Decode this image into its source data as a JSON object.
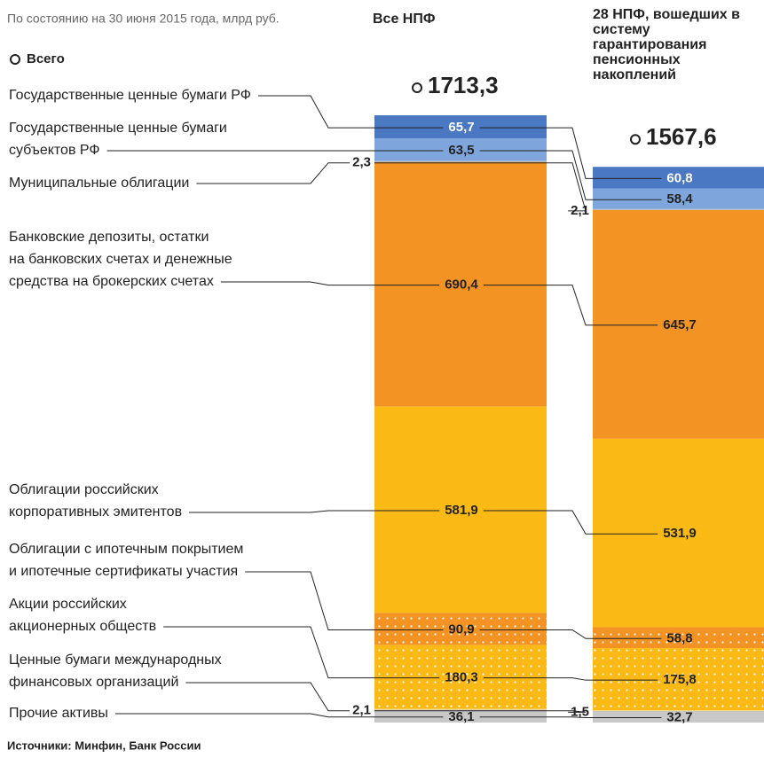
{
  "chart_data": {
    "type": "bar",
    "stacked": true,
    "subtitle": "По состоянию на 30 июня 2015 года, млрд руб.",
    "legend_label": "Всего",
    "source": "Источники: Минфин, Банк России",
    "categories": [
      [
        "Государственные ценные бумаги РФ"
      ],
      [
        "Государственные ценные бумаги",
        "субъектов РФ"
      ],
      [
        "Муниципальные облигации"
      ],
      [
        "Банковские депозиты, остатки",
        "на банковских счетах и денежные",
        "средства на брокерских счетах"
      ],
      [
        "Облигации российских",
        "корпоративных эмитентов"
      ],
      [
        "Облигации с ипотечным покрытием",
        "и ипотечные сертификаты участия"
      ],
      [
        "Акции российских",
        "акционерных обществ"
      ],
      [
        "Ценные бумаги международных",
        "финансовых организаций"
      ],
      [
        "Прочие активы"
      ]
    ],
    "colors": [
      "#4a78c2",
      "#7ea6dc",
      "#a9c3e8",
      "#f39323",
      "#fbb915",
      "#f39323",
      "#fbb915",
      "#fdd77a",
      "#c8c8c8"
    ],
    "dotted": [
      false,
      false,
      false,
      false,
      false,
      true,
      true,
      false,
      false
    ],
    "series": [
      {
        "name": "Все НПФ",
        "total": 1713.3,
        "total_label": "1713,3",
        "values": [
          65.7,
          63.5,
          2.3,
          690.4,
          581.9,
          90.9,
          180.3,
          2.1,
          36.1
        ],
        "value_labels": [
          "65,7",
          "63,5",
          "2,3",
          "690,4",
          "581,9",
          "90,9",
          "180,3",
          "2,1",
          "36,1"
        ]
      },
      {
        "name": "28 НПФ, вошедших в систему гарантирования пенсионных накоплений",
        "total": 1567.6,
        "total_label": "1567,6",
        "values": [
          60.8,
          58.4,
          2.1,
          645.7,
          531.9,
          58.8,
          175.8,
          1.5,
          32.7
        ],
        "value_labels": [
          "60,8",
          "58,4",
          "2,1",
          "645,7",
          "531,9",
          "58,8",
          "175,8",
          "1,5",
          "32,7"
        ]
      }
    ]
  }
}
